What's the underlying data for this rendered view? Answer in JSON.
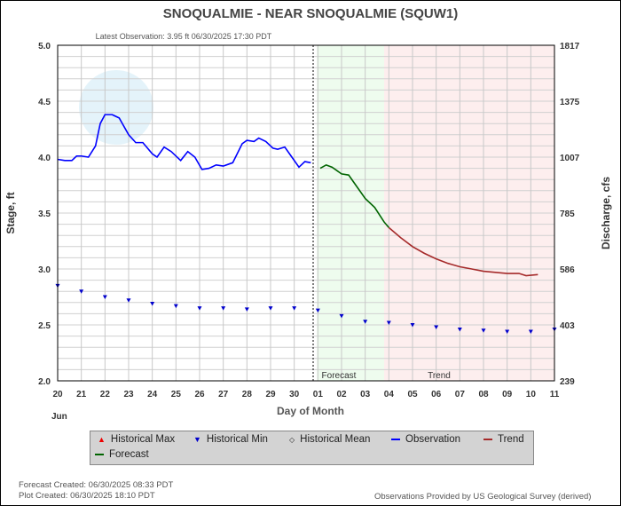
{
  "chart_data": {
    "type": "line",
    "title": "SNOQUALMIE - NEAR SNOQUALMIE  (SQUW1)",
    "subtitle": "Latest Observation: 3.95 ft 06/30/2025 17:30 PDT",
    "xlabel": "Day of Month",
    "ylabel": "Stage, ft",
    "y2label": "Discharge, cfs",
    "ylim": [
      2.0,
      5.0
    ],
    "yticks": [
      "2.0",
      "2.5",
      "3.0",
      "3.5",
      "4.0",
      "4.5",
      "5.0"
    ],
    "y2ticks": [
      "239",
      "403",
      "586",
      "785",
      "1007",
      "1375",
      "1817"
    ],
    "xticks": [
      "20",
      "21",
      "22",
      "23",
      "24",
      "25",
      "26",
      "27",
      "28",
      "29",
      "30",
      "01",
      "02",
      "03",
      "04",
      "05",
      "06",
      "07",
      "08",
      "09",
      "10",
      "11"
    ],
    "month_label": "Jun",
    "x_unit": "days since Jun 20 00:00",
    "forecast_start": 10.8,
    "forecast_region": [
      10.95,
      13.8
    ],
    "trend_region": [
      13.8,
      21
    ],
    "region_labels": {
      "forecast": "Forecast",
      "trend": "Trend"
    },
    "series": [
      {
        "name": "Observation",
        "color": "#0000ff",
        "points": [
          [
            0,
            3.98
          ],
          [
            0.3,
            3.97
          ],
          [
            0.6,
            3.97
          ],
          [
            0.8,
            4.01
          ],
          [
            1.0,
            4.01
          ],
          [
            1.3,
            4.0
          ],
          [
            1.6,
            4.1
          ],
          [
            1.8,
            4.3
          ],
          [
            2.0,
            4.38
          ],
          [
            2.3,
            4.38
          ],
          [
            2.6,
            4.35
          ],
          [
            3.0,
            4.2
          ],
          [
            3.3,
            4.13
          ],
          [
            3.6,
            4.13
          ],
          [
            4.0,
            4.03
          ],
          [
            4.2,
            4.0
          ],
          [
            4.5,
            4.09
          ],
          [
            4.8,
            4.05
          ],
          [
            5.2,
            3.97
          ],
          [
            5.5,
            4.05
          ],
          [
            5.8,
            4.0
          ],
          [
            6.1,
            3.89
          ],
          [
            6.4,
            3.9
          ],
          [
            6.7,
            3.93
          ],
          [
            7.0,
            3.92
          ],
          [
            7.4,
            3.95
          ],
          [
            7.8,
            4.12
          ],
          [
            8.0,
            4.15
          ],
          [
            8.3,
            4.14
          ],
          [
            8.5,
            4.17
          ],
          [
            8.8,
            4.14
          ],
          [
            9.1,
            4.08
          ],
          [
            9.3,
            4.07
          ],
          [
            9.6,
            4.09
          ],
          [
            9.9,
            4.0
          ],
          [
            10.2,
            3.91
          ],
          [
            10.45,
            3.96
          ],
          [
            10.7,
            3.95
          ]
        ]
      },
      {
        "name": "Forecast",
        "color": "#006400",
        "points": [
          [
            11.1,
            3.9
          ],
          [
            11.35,
            3.93
          ],
          [
            11.6,
            3.91
          ],
          [
            12.0,
            3.85
          ],
          [
            12.3,
            3.84
          ],
          [
            12.6,
            3.75
          ],
          [
            13.0,
            3.63
          ],
          [
            13.4,
            3.55
          ],
          [
            13.8,
            3.42
          ],
          [
            14.0,
            3.37
          ]
        ]
      },
      {
        "name": "Trend",
        "color": "#a52a2a",
        "points": [
          [
            14.0,
            3.37
          ],
          [
            14.5,
            3.28
          ],
          [
            15.0,
            3.2
          ],
          [
            15.5,
            3.14
          ],
          [
            16.0,
            3.09
          ],
          [
            16.5,
            3.05
          ],
          [
            17.0,
            3.02
          ],
          [
            17.5,
            3.0
          ],
          [
            18.0,
            2.98
          ],
          [
            19.0,
            2.96
          ],
          [
            19.5,
            2.96
          ],
          [
            19.8,
            2.94
          ],
          [
            20.3,
            2.95
          ]
        ]
      }
    ],
    "historical_min": [
      [
        0,
        2.85
      ],
      [
        1,
        2.8
      ],
      [
        2,
        2.75
      ],
      [
        3,
        2.72
      ],
      [
        4,
        2.69
      ],
      [
        5,
        2.67
      ],
      [
        6,
        2.65
      ],
      [
        7,
        2.65
      ],
      [
        8,
        2.64
      ],
      [
        9,
        2.65
      ],
      [
        10,
        2.65
      ],
      [
        11,
        2.63
      ],
      [
        12,
        2.58
      ],
      [
        13,
        2.53
      ],
      [
        14,
        2.52
      ],
      [
        15,
        2.5
      ],
      [
        16,
        2.48
      ],
      [
        17,
        2.46
      ],
      [
        18,
        2.45
      ],
      [
        19,
        2.44
      ],
      [
        20,
        2.44
      ],
      [
        21,
        2.46
      ]
    ],
    "legend": [
      "Historical Max",
      "Historical Min",
      "Historical Mean",
      "Observation",
      "Trend",
      "Forecast"
    ],
    "legend_placement": "bottom"
  },
  "footer": {
    "forecast_created": "Forecast Created: 06/30/2025 08:33 PDT",
    "plot_created": "Plot Created: 06/30/2025 18:10 PDT",
    "credit": "Observations Provided by US Geological Survey (derived)"
  }
}
